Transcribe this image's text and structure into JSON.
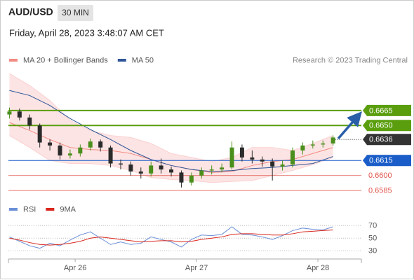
{
  "header": {
    "symbol": "AUD/USD",
    "interval": "30 MIN",
    "timestamp": "Friday, April 28, 2023 3:48:07 AM CET"
  },
  "chart_data": [
    {
      "type": "candlestick",
      "credit": "Research © 2023 Trading Central",
      "x": [
        11,
        13,
        15,
        17,
        19,
        21,
        23,
        25,
        27,
        29,
        31,
        33,
        35,
        37,
        39,
        41,
        43,
        45,
        47,
        49,
        51,
        53,
        55,
        57,
        59,
        61,
        63,
        65,
        67,
        69,
        71,
        73,
        75
      ],
      "open": [
        0.6661,
        0.6664,
        0.6658,
        0.665,
        0.6633,
        0.663,
        0.662,
        0.6622,
        0.6628,
        0.6634,
        0.6628,
        0.6612,
        0.6611,
        0.6604,
        0.6602,
        0.661,
        0.6606,
        0.6603,
        0.6593,
        0.66,
        0.6605,
        0.6606,
        0.6608,
        0.6628,
        0.6618,
        0.6616,
        0.6614,
        0.6609,
        0.6611,
        0.6625,
        0.663,
        0.6631,
        0.6632
      ],
      "high": [
        0.6668,
        0.6667,
        0.6661,
        0.6652,
        0.6636,
        0.6633,
        0.6626,
        0.6631,
        0.6637,
        0.6636,
        0.663,
        0.6616,
        0.6614,
        0.6608,
        0.6614,
        0.6617,
        0.6609,
        0.6605,
        0.6603,
        0.6608,
        0.661,
        0.6612,
        0.6634,
        0.6631,
        0.6625,
        0.6619,
        0.6617,
        0.6615,
        0.6628,
        0.6633,
        0.6635,
        0.6635,
        0.664
      ],
      "low": [
        0.6657,
        0.6655,
        0.6646,
        0.6628,
        0.6625,
        0.6616,
        0.6617,
        0.6619,
        0.6625,
        0.6624,
        0.6608,
        0.6606,
        0.66,
        0.6597,
        0.6599,
        0.6602,
        0.6599,
        0.6588,
        0.659,
        0.6597,
        0.6601,
        0.6603,
        0.6606,
        0.6614,
        0.6612,
        0.6609,
        0.6595,
        0.6605,
        0.6608,
        0.6621,
        0.6627,
        0.6628,
        0.663
      ],
      "close": [
        0.6664,
        0.6658,
        0.665,
        0.6633,
        0.663,
        0.662,
        0.6622,
        0.6628,
        0.6634,
        0.6628,
        0.6612,
        0.6611,
        0.6604,
        0.6602,
        0.661,
        0.6606,
        0.6603,
        0.6593,
        0.66,
        0.6605,
        0.6606,
        0.6608,
        0.6628,
        0.6618,
        0.6616,
        0.6614,
        0.6609,
        0.6611,
        0.6625,
        0.663,
        0.6631,
        0.6632,
        0.6638
      ],
      "up_color": "#4a8f1c",
      "down_color": "#2b2b2b",
      "xlim": [
        10.8,
        80.6
      ],
      "ylim": [
        0.6576,
        0.6709
      ],
      "overlays": [
        {
          "name": "MA 20 + Bollinger Bands",
          "color": "#f28b82",
          "band_color": "#fde4e4",
          "x": [
            11,
            15,
            19,
            23,
            27,
            31,
            35,
            39,
            43,
            47,
            51,
            55,
            59,
            63,
            67,
            71,
            75
          ],
          "values": [
            0.6653,
            0.6645,
            0.6636,
            0.6628,
            0.6626,
            0.6625,
            0.6622,
            0.6616,
            0.661,
            0.6606,
            0.6603,
            0.6604,
            0.661,
            0.6614,
            0.6616,
            0.6622,
            0.6628
          ],
          "upper": [
            0.6702,
            0.669,
            0.6675,
            0.6655,
            0.6645,
            0.664,
            0.6638,
            0.6632,
            0.6622,
            0.6618,
            0.6614,
            0.6618,
            0.6628,
            0.6628,
            0.6625,
            0.6632,
            0.664
          ],
          "lower": [
            0.664,
            0.6628,
            0.6615,
            0.6612,
            0.6612,
            0.661,
            0.6605,
            0.6598,
            0.6596,
            0.6595,
            0.6593,
            0.6594,
            0.6595,
            0.66,
            0.6605,
            0.6611,
            0.6618
          ]
        },
        {
          "name": "MA 50",
          "color": "#2e5597",
          "x": [
            11,
            15,
            19,
            23,
            27,
            31,
            35,
            39,
            43,
            47,
            51,
            55,
            59,
            63,
            67,
            71,
            75
          ],
          "values": [
            0.6685,
            0.668,
            0.667,
            0.6657,
            0.6646,
            0.6636,
            0.6625,
            0.6616,
            0.661,
            0.6606,
            0.6604,
            0.6605,
            0.6607,
            0.6608,
            0.661,
            0.6612,
            0.6619
          ]
        }
      ],
      "levels": [
        {
          "value": 0.6665,
          "label": "0.6665",
          "color": "#5a9e0e",
          "style": "box",
          "line": "solid"
        },
        {
          "value": 0.665,
          "label": "0.6650",
          "color": "#5a9e0e",
          "style": "box",
          "line": "solid"
        },
        {
          "value": 0.6636,
          "label": "0.6636",
          "color": "#333333",
          "style": "box",
          "line": "dotted"
        },
        {
          "value": 0.6615,
          "label": "0.6615",
          "color": "#1a5dc8",
          "style": "box",
          "line": "solid"
        },
        {
          "value": 0.66,
          "label": "0.6600",
          "color": "#e0524a",
          "style": "text",
          "line": "solid"
        },
        {
          "value": 0.6585,
          "label": "0.6585",
          "color": "#e0524a",
          "style": "text",
          "line": "solid"
        }
      ]
    },
    {
      "type": "line",
      "x": [
        11,
        13,
        15,
        17,
        19,
        21,
        23,
        25,
        27,
        29,
        31,
        33,
        35,
        37,
        39,
        41,
        43,
        45,
        47,
        49,
        51,
        53,
        55,
        57,
        59,
        61,
        63,
        65,
        67,
        69,
        71,
        73,
        75
      ],
      "series": [
        {
          "name": "RSI",
          "color": "#6b8fd6",
          "values": [
            52,
            45,
            38,
            34,
            42,
            38,
            47,
            55,
            60,
            50,
            40,
            44,
            40,
            42,
            52,
            48,
            44,
            36,
            48,
            55,
            54,
            56,
            68,
            56,
            55,
            52,
            48,
            54,
            62,
            66,
            64,
            63,
            68
          ]
        },
        {
          "name": "9MA",
          "color": "#d9261c",
          "values": [
            50,
            47,
            43,
            40,
            39,
            40,
            42,
            45,
            50,
            52,
            50,
            48,
            46,
            44,
            45,
            46,
            46,
            44,
            45,
            48,
            50,
            52,
            56,
            57,
            57,
            56,
            55,
            55,
            57,
            60,
            61,
            62,
            63
          ]
        }
      ],
      "xlim": [
        10.8,
        80.6
      ],
      "ylim": [
        17,
        78
      ],
      "yticks": [
        30,
        50,
        70
      ],
      "xticks": [
        {
          "value": 24,
          "label": "Apr 26"
        },
        {
          "value": 48,
          "label": "Apr 27"
        },
        {
          "value": 72,
          "label": "Apr 28"
        }
      ]
    }
  ]
}
